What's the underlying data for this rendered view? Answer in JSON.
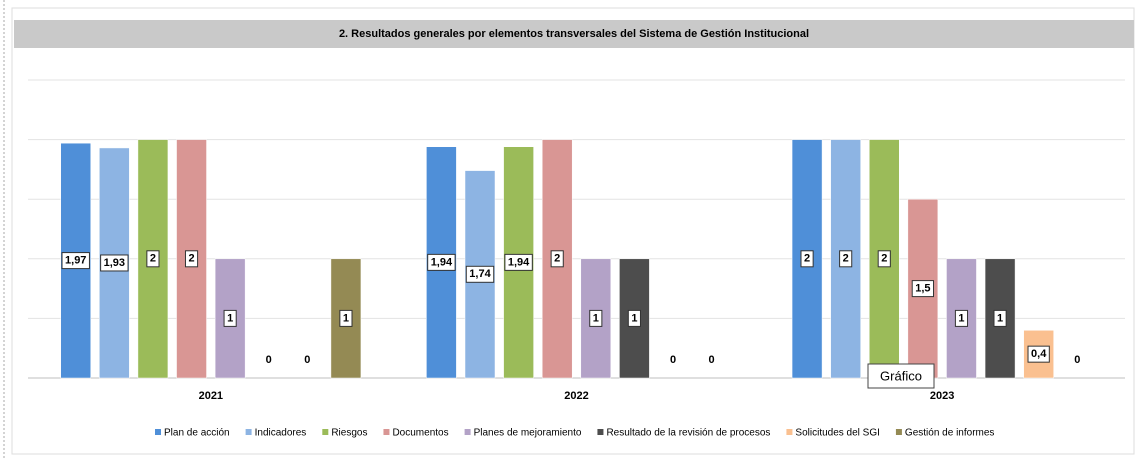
{
  "chart_data": {
    "type": "bar",
    "title": "2. Resultados generales por elementos transversales del Sistema de Gestión Institucional",
    "categories": [
      "2021",
      "2022",
      "2023"
    ],
    "series": [
      {
        "name": "Plan de acción",
        "color": "#4f8fd8",
        "values": [
          1.97,
          1.94,
          2
        ],
        "value_labels": [
          "1,97",
          "1,94",
          "2"
        ]
      },
      {
        "name": "Indicadores",
        "color": "#8db4e3",
        "values": [
          1.93,
          1.74,
          2
        ],
        "value_labels": [
          "1,93",
          "1,74",
          "2"
        ]
      },
      {
        "name": "Riesgos",
        "color": "#9bbb59",
        "values": [
          2,
          1.94,
          2
        ],
        "value_labels": [
          "2",
          "1,94",
          "2"
        ]
      },
      {
        "name": "Documentos",
        "color": "#d99694",
        "values": [
          2,
          2,
          1.5
        ],
        "value_labels": [
          "2",
          "2",
          "1,5"
        ]
      },
      {
        "name": "Planes de mejoramiento",
        "color": "#b3a2c7",
        "values": [
          1,
          1,
          1
        ]
      },
      {
        "name": "Resultado de la revisión de procesos",
        "color": "#4d4d4d",
        "values": [
          0,
          1,
          1
        ]
      },
      {
        "name": "Solicitudes del SGI",
        "color": "#fac090",
        "values": [
          0,
          0,
          0.4
        ],
        "value_labels": [
          "0",
          "0",
          "0,4"
        ]
      },
      {
        "name": "Gestión de informes",
        "color": "#948a54",
        "values": [
          1,
          0,
          0
        ]
      }
    ],
    "ylim": [
      0,
      2.5
    ],
    "yticks": [
      0,
      0.5,
      1,
      1.5,
      2,
      2.5
    ],
    "grid": true,
    "legend": "bottom",
    "tooltip": "Gráfico"
  }
}
